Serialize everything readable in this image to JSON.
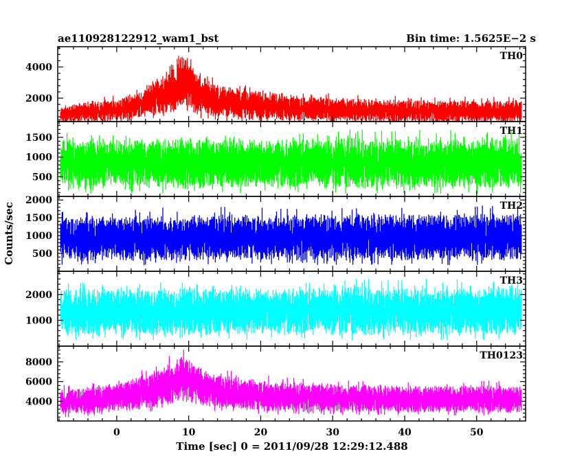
{
  "chart_data": {
    "type": "line",
    "title_left": "ae110928122912_wam1_bst",
    "title_right": "Bin time: 1.5625E−2 s",
    "xlabel": "Time [sec] 0 = 2011/09/28 12:29:12.488",
    "ylabel": "Counts/sec",
    "xlim": [
      -8.2,
      56.8
    ],
    "data_range": [
      -7.8,
      56.2
    ],
    "bin_time": 0.015625,
    "x_ticks": [
      0,
      10,
      20,
      30,
      40,
      50
    ],
    "panels": [
      {
        "name": "TH0",
        "color": "#ff0000",
        "ylim": [
          500,
          5300
        ],
        "y_ticks": [
          2000,
          4000
        ],
        "envelope_lower": [
          [
            -7.8,
            350
          ],
          [
            0,
            500
          ],
          [
            5,
            800
          ],
          [
            8,
            1000
          ],
          [
            9,
            1300
          ],
          [
            10,
            1000
          ],
          [
            14,
            650
          ],
          [
            20,
            450
          ],
          [
            56,
            350
          ]
        ],
        "envelope_upper": [
          [
            -7.8,
            1500
          ],
          [
            -5,
            1800
          ],
          [
            0,
            2000
          ],
          [
            3,
            2400
          ],
          [
            5,
            3300
          ],
          [
            7,
            3500
          ],
          [
            8,
            4200
          ],
          [
            8.6,
            5000
          ],
          [
            9.2,
            5400
          ],
          [
            10,
            4600
          ],
          [
            11.5,
            3700
          ],
          [
            14,
            2900
          ],
          [
            20,
            2600
          ],
          [
            25,
            2300
          ],
          [
            30,
            2100
          ],
          [
            35,
            2000
          ],
          [
            45,
            1900
          ],
          [
            50,
            1950
          ],
          [
            56,
            1900
          ]
        ]
      },
      {
        "name": "TH1",
        "color": "#00ff00",
        "ylim": [
          0,
          1900
        ],
        "y_ticks": [
          500,
          1000,
          1500
        ],
        "envelope_lower": [
          [
            -7.8,
            150
          ],
          [
            56,
            150
          ]
        ],
        "envelope_upper": [
          [
            -7.8,
            1500
          ],
          [
            56,
            1550
          ]
        ]
      },
      {
        "name": "TH2",
        "color": "#0000ff",
        "ylim": [
          0,
          2100
        ],
        "y_ticks": [
          500,
          1000,
          1500,
          2000
        ],
        "envelope_lower": [
          [
            -7.8,
            250
          ],
          [
            56,
            250
          ]
        ],
        "envelope_upper": [
          [
            -7.8,
            1600
          ],
          [
            56,
            1700
          ]
        ]
      },
      {
        "name": "TH3",
        "color": "#00ffff",
        "ylim": [
          0,
          2900
        ],
        "y_ticks": [
          1000,
          2000
        ],
        "envelope_lower": [
          [
            -7.8,
            350
          ],
          [
            56,
            350
          ]
        ],
        "envelope_upper": [
          [
            -7.8,
            2300
          ],
          [
            56,
            2400
          ]
        ]
      },
      {
        "name": "TH0123",
        "color": "#ff00ff",
        "ylim": [
          2000,
          9600
        ],
        "y_ticks": [
          4000,
          6000,
          8000
        ],
        "envelope_lower": [
          [
            -7.8,
            2500
          ],
          [
            0,
            2800
          ],
          [
            5,
            3200
          ],
          [
            8,
            3600
          ],
          [
            9,
            4200
          ],
          [
            10,
            3700
          ],
          [
            14,
            3100
          ],
          [
            20,
            2800
          ],
          [
            56,
            2700
          ]
        ],
        "envelope_upper": [
          [
            -7.8,
            5300
          ],
          [
            0,
            6000
          ],
          [
            5,
            7200
          ],
          [
            8,
            8300
          ],
          [
            9,
            9200
          ],
          [
            10,
            8800
          ],
          [
            12,
            7300
          ],
          [
            15,
            6700
          ],
          [
            20,
            6300
          ],
          [
            30,
            5900
          ],
          [
            40,
            5700
          ],
          [
            50,
            5800
          ],
          [
            56,
            5700
          ]
        ]
      }
    ]
  }
}
